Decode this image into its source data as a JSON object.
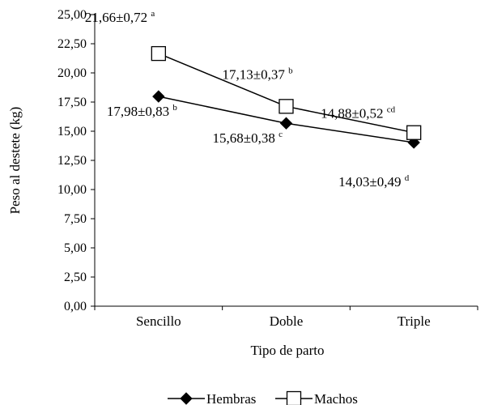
{
  "chart_data": {
    "type": "line",
    "title": "",
    "xlabel": "Tipo de parto",
    "ylabel": "Peso al destete (kg)",
    "categories": [
      "Sencillo",
      "Doble",
      "Triple"
    ],
    "ylim": [
      0,
      25
    ],
    "yticks": [
      "0,00",
      "2,50",
      "5,00",
      "7,50",
      "10,00",
      "12,50",
      "15,00",
      "17,50",
      "20,00",
      "22,50",
      "25,00"
    ],
    "grid": false,
    "legend_position": "bottom",
    "series": [
      {
        "name": "Hembras",
        "marker": "filled-diamond",
        "color": "#000000",
        "values": [
          17.98,
          15.68,
          14.03
        ],
        "labels": [
          {
            "text": "17,98±0,83",
            "sup": "b"
          },
          {
            "text": "15,68±0,38",
            "sup": "c"
          },
          {
            "text": "14,03±0,49",
            "sup": "d"
          }
        ]
      },
      {
        "name": "Machos",
        "marker": "open-square",
        "color": "#000000",
        "values": [
          21.66,
          17.13,
          14.88
        ],
        "labels": [
          {
            "text": "21,66±0,72",
            "sup": "a"
          },
          {
            "text": "17,13±0,37",
            "sup": "b"
          },
          {
            "text": "14,88±0,52",
            "sup": "cd"
          }
        ]
      }
    ]
  }
}
